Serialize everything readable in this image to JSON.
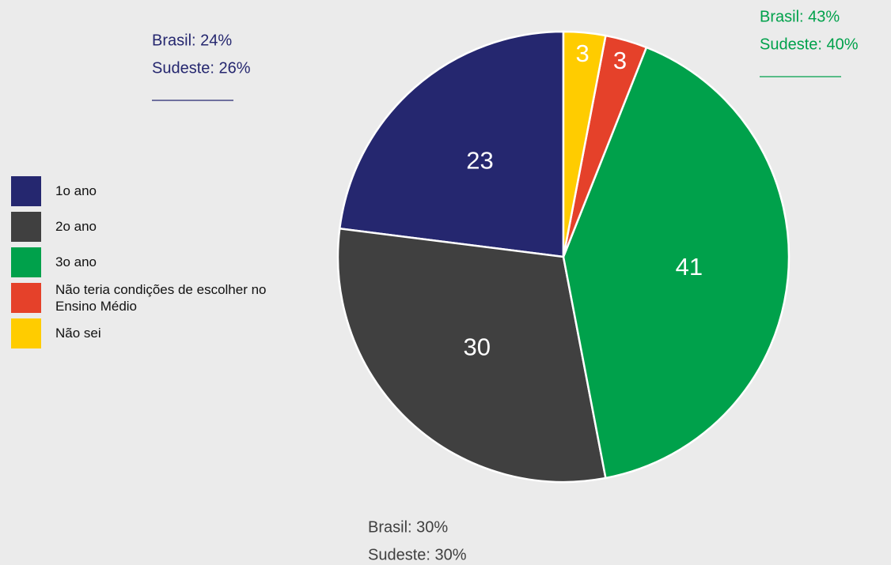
{
  "chart_data": {
    "type": "pie",
    "categories": [
      "1o ano",
      "2o ano",
      "3o ano",
      "Não teria condições de escolher no Ensino Médio",
      "Não sei"
    ],
    "values": [
      23,
      30,
      41,
      3,
      3
    ],
    "colors": [
      "#25276f",
      "#404040",
      "#00a14b",
      "#e5412a",
      "#ffcc00"
    ],
    "annotations": [
      {
        "lines": [
          "Brasil: 24%",
          "Sudeste: 26%"
        ],
        "color": "#25276f"
      },
      {
        "lines": [
          "Brasil: 30%",
          "Sudeste: 30%"
        ],
        "color": "#404040"
      },
      {
        "lines": [
          "Brasil: 43%",
          "Sudeste: 40%"
        ],
        "color": "#00a14b"
      }
    ]
  }
}
